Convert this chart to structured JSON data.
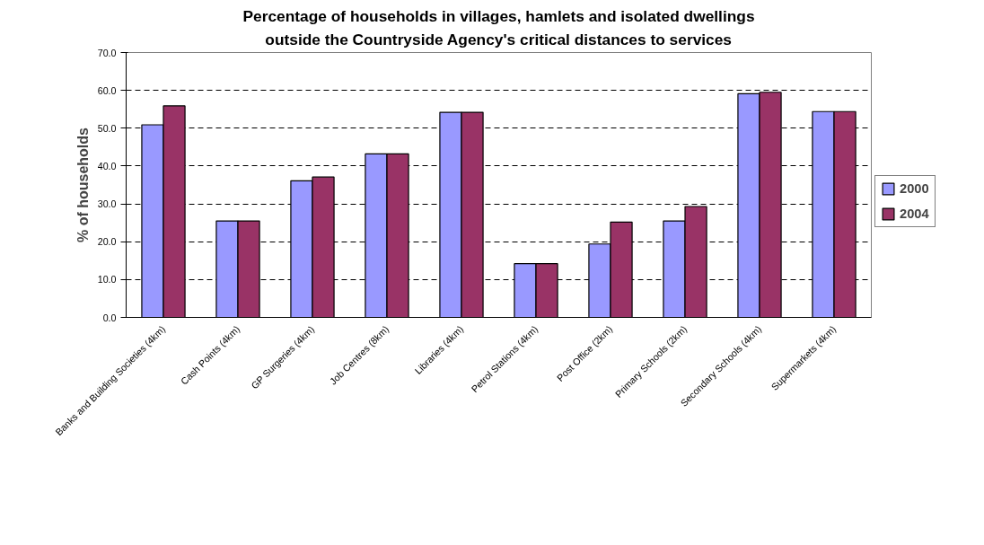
{
  "chart_data": {
    "type": "bar",
    "title": "Percentage of households in villages, hamlets and isolated dwellings\noutside the Countryside Agency's critical distances to services",
    "ylabel": "% of households",
    "categories": [
      "Banks and Building Societies (4km)",
      "Cash Points (4km)",
      "GP Surgeries (4km)",
      "Job Centres (8km)",
      "Libraries (4km)",
      "Petrol Stations (4km)",
      "Post Office (2km)",
      "Primary Schools (2km)",
      "Secondary Schools (4km)",
      "Supermarkets (4km)"
    ],
    "series": [
      {
        "name": "2000",
        "color": "#9999ff",
        "values": [
          50.9,
          25.5,
          36.1,
          43.2,
          54.2,
          14.2,
          19.4,
          25.5,
          59.1,
          54.4
        ]
      },
      {
        "name": "2004",
        "color": "#993366",
        "values": [
          55.9,
          25.5,
          37.1,
          43.2,
          54.2,
          14.2,
          25.2,
          29.3,
          59.5,
          54.4
        ]
      }
    ],
    "ylim": [
      0,
      70
    ],
    "yticks": [
      {
        "value": 0,
        "label": "0.0"
      },
      {
        "value": 10,
        "label": "10.0"
      },
      {
        "value": 20,
        "label": "20.0"
      },
      {
        "value": 30,
        "label": "30.0"
      },
      {
        "value": 40,
        "label": "40.0"
      },
      {
        "value": 50,
        "label": "50.0"
      },
      {
        "value": 60,
        "label": "60.0"
      },
      {
        "value": 70,
        "label": "70.0"
      }
    ],
    "grid": "y",
    "legend": "right"
  }
}
